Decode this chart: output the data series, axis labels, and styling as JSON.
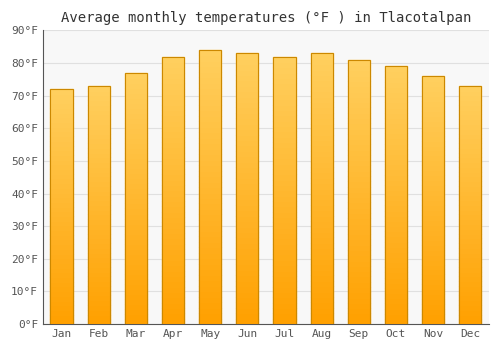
{
  "months": [
    "Jan",
    "Feb",
    "Mar",
    "Apr",
    "May",
    "Jun",
    "Jul",
    "Aug",
    "Sep",
    "Oct",
    "Nov",
    "Dec"
  ],
  "values": [
    72,
    73,
    77,
    82,
    84,
    83,
    82,
    83,
    81,
    79,
    76,
    73
  ],
  "bar_color_top": "#FFD060",
  "bar_color_bottom": "#FFA000",
  "bar_edge_color": "#CC8800",
  "title": "Average monthly temperatures (°F ) in Tlacotalpan",
  "ylim": [
    0,
    90
  ],
  "yticks": [
    0,
    10,
    20,
    30,
    40,
    50,
    60,
    70,
    80,
    90
  ],
  "ytick_labels": [
    "0°F",
    "10°F",
    "20°F",
    "30°F",
    "40°F",
    "50°F",
    "60°F",
    "70°F",
    "80°F",
    "90°F"
  ],
  "background_color": "#FFFFFF",
  "plot_bg_color": "#F8F8F8",
  "grid_color": "#E0E0E0",
  "title_fontsize": 10,
  "tick_fontsize": 8,
  "bar_width": 0.6
}
